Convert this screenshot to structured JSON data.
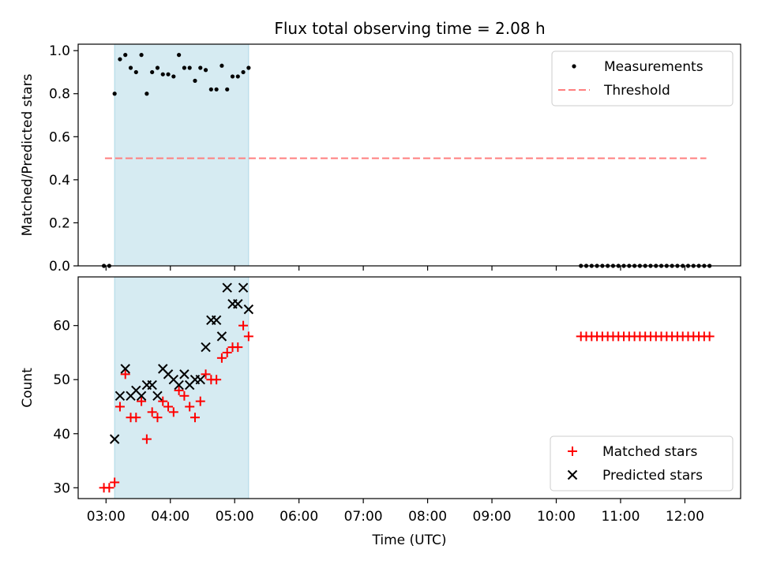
{
  "chart_data": [
    {
      "type": "scatter",
      "title": "Flux total observing time = 2.08 h",
      "xlabel": "",
      "ylabel": "Matched/Predicted stars",
      "xlim": [
        "02:34",
        "12:52"
      ],
      "ylim": [
        0.0,
        1.03
      ],
      "yticks": [
        "0.0",
        "0.2",
        "0.4",
        "0.6",
        "0.8",
        "1.0"
      ],
      "grid": false,
      "legend_position": "top-right",
      "shaded_interval": {
        "start": "03:08",
        "end": "05:13",
        "color": "#add8e6"
      },
      "threshold": {
        "name": "Threshold",
        "value": 0.5,
        "x_start": "02:59",
        "x_end": "12:20",
        "color": "#ff7f7f"
      },
      "series": [
        {
          "name": "Measurements",
          "marker": "dot",
          "color": "#000000",
          "x": [
            "02:58",
            "03:03",
            "03:08",
            "03:13",
            "03:18",
            "03:23",
            "03:28",
            "03:33",
            "03:38",
            "03:43",
            "03:48",
            "03:53",
            "03:58",
            "04:03",
            "04:08",
            "04:13",
            "04:18",
            "04:23",
            "04:28",
            "04:33",
            "04:38",
            "04:43",
            "04:48",
            "04:53",
            "04:58",
            "05:03",
            "05:08",
            "05:13"
          ],
          "values": [
            0.0,
            0.0,
            0.8,
            0.96,
            0.98,
            0.92,
            0.9,
            0.98,
            0.8,
            0.9,
            0.92,
            0.89,
            0.89,
            0.88,
            0.98,
            0.92,
            0.92,
            0.86,
            0.92,
            0.91,
            0.82,
            0.82,
            0.93,
            0.82,
            0.88,
            0.88,
            0.9,
            0.92
          ]
        },
        {
          "name": "",
          "marker": "dot",
          "color": "#000000",
          "x": [
            "10:23",
            "10:28",
            "10:33",
            "10:38",
            "10:43",
            "10:48",
            "10:53",
            "10:58",
            "11:03",
            "11:08",
            "11:13",
            "11:18",
            "11:23",
            "11:28",
            "11:33",
            "11:38",
            "11:43",
            "11:48",
            "11:53",
            "11:58",
            "12:03",
            "12:08",
            "12:13",
            "12:18",
            "12:23"
          ],
          "values": [
            0,
            0,
            0,
            0,
            0,
            0,
            0,
            0,
            0,
            0,
            0,
            0,
            0,
            0,
            0,
            0,
            0,
            0,
            0,
            0,
            0,
            0,
            0,
            0,
            0
          ]
        }
      ]
    },
    {
      "type": "scatter",
      "title": "",
      "xlabel": "Time (UTC)",
      "ylabel": "Count",
      "xlim": [
        "02:34",
        "12:52"
      ],
      "ylim": [
        28,
        69
      ],
      "yticks": [
        "30",
        "40",
        "50",
        "60"
      ],
      "xticks": [
        "03:00",
        "04:00",
        "05:00",
        "06:00",
        "07:00",
        "08:00",
        "09:00",
        "10:00",
        "11:00",
        "12:00"
      ],
      "grid": false,
      "legend_position": "bottom-right",
      "shaded_interval": {
        "start": "03:08",
        "end": "05:13",
        "color": "#add8e6"
      },
      "series": [
        {
          "name": "Matched stars",
          "marker": "plus",
          "color": "#ff0000",
          "x": [
            "02:58",
            "03:03",
            "03:08",
            "03:13",
            "03:18",
            "03:23",
            "03:28",
            "03:33",
            "03:38",
            "03:43",
            "03:48",
            "03:53",
            "03:58",
            "04:03",
            "04:08",
            "04:13",
            "04:18",
            "04:23",
            "04:28",
            "04:33",
            "04:38",
            "04:43",
            "04:48",
            "04:53",
            "04:58",
            "05:03",
            "05:08",
            "05:13",
            "10:23",
            "10:28",
            "10:33",
            "10:38",
            "10:43",
            "10:48",
            "10:53",
            "10:58",
            "11:03",
            "11:08",
            "11:13",
            "11:18",
            "11:23",
            "11:28",
            "11:33",
            "11:38",
            "11:43",
            "11:48",
            "11:53",
            "11:58",
            "12:03",
            "12:08",
            "12:13",
            "12:18",
            "12:23"
          ],
          "values": [
            30,
            30,
            31,
            45,
            51,
            43,
            43,
            46,
            39,
            44,
            43,
            46,
            45,
            44,
            48,
            47,
            45,
            43,
            46,
            51,
            50,
            50,
            54,
            55,
            56,
            56,
            60,
            58,
            58,
            58,
            58,
            58,
            58,
            58,
            58,
            58,
            58,
            58,
            58,
            58,
            58,
            58,
            58,
            58,
            58,
            58,
            58,
            58,
            58,
            58,
            58,
            58,
            58
          ]
        },
        {
          "name": "Predicted stars",
          "marker": "x",
          "color": "#000000",
          "x": [
            "03:08",
            "03:13",
            "03:18",
            "03:23",
            "03:28",
            "03:33",
            "03:38",
            "03:43",
            "03:48",
            "03:53",
            "03:58",
            "04:03",
            "04:08",
            "04:13",
            "04:18",
            "04:23",
            "04:28",
            "04:33",
            "04:38",
            "04:43",
            "04:48",
            "04:53",
            "04:58",
            "05:03",
            "05:08",
            "05:13"
          ],
          "values": [
            39,
            47,
            52,
            47,
            48,
            47,
            49,
            49,
            47,
            52,
            51,
            50,
            49,
            51,
            49,
            50,
            50,
            56,
            61,
            61,
            58,
            67,
            64,
            64,
            67,
            63
          ]
        }
      ]
    }
  ]
}
